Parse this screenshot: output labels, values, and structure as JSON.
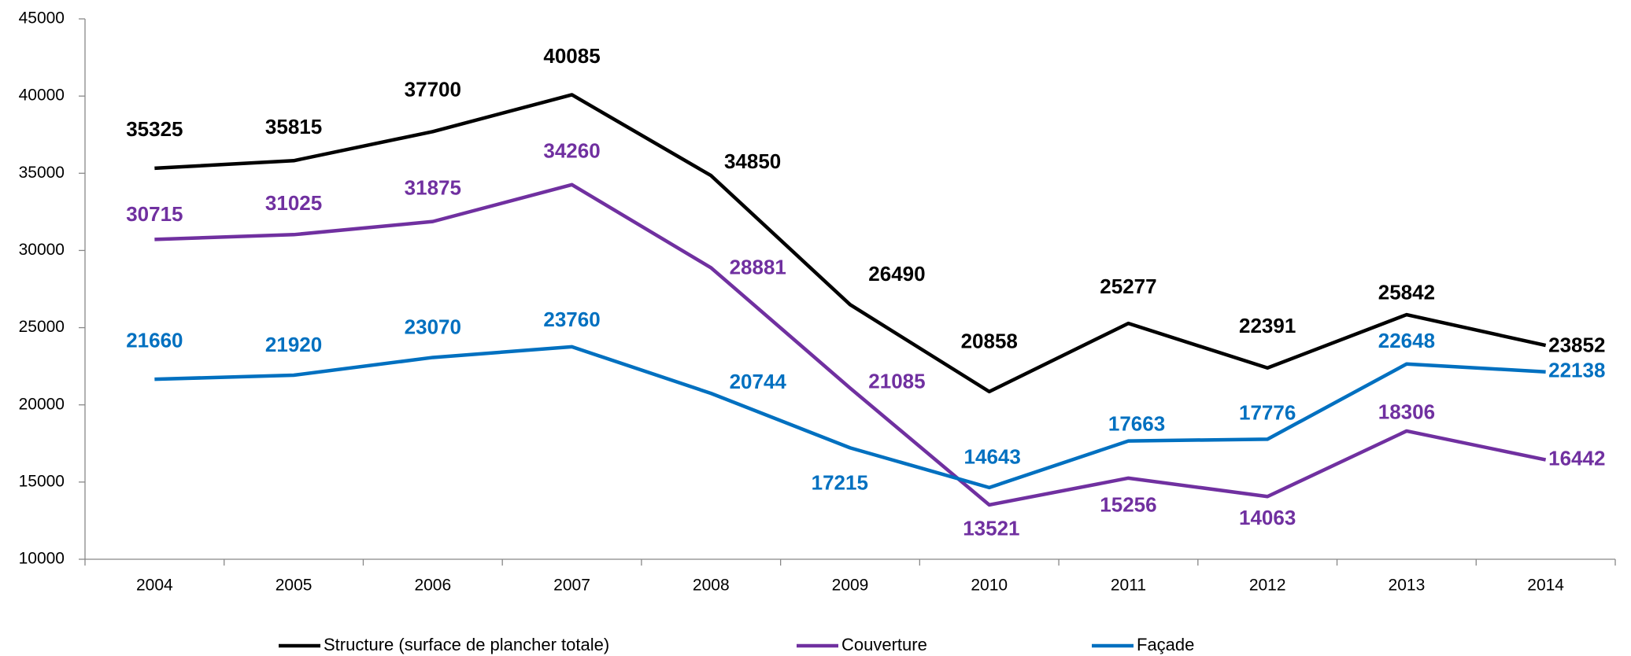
{
  "chart_data": {
    "type": "line",
    "categories": [
      "2004",
      "2005",
      "2006",
      "2007",
      "2008",
      "2009",
      "2010",
      "2011",
      "2012",
      "2013",
      "2014"
    ],
    "series": [
      {
        "name": "Structure (surface de plancher totale)",
        "color": "#000000",
        "values": [
          35325,
          35815,
          37700,
          40085,
          34850,
          26490,
          20858,
          25277,
          22391,
          25842,
          23852
        ]
      },
      {
        "name": "Couverture",
        "color": "#7030a0",
        "values": [
          30715,
          31025,
          31875,
          34260,
          28881,
          21085,
          13521,
          15256,
          14063,
          18306,
          16442
        ]
      },
      {
        "name": "Façade",
        "color": "#0070c0",
        "values": [
          21660,
          21920,
          23070,
          23760,
          20744,
          17215,
          14643,
          17663,
          17776,
          22648,
          22138
        ]
      }
    ],
    "ylim": [
      10000,
      45000
    ],
    "yticks": [
      10000,
      15000,
      20000,
      25000,
      30000,
      35000,
      40000,
      45000
    ],
    "grid": false,
    "legend": "bottom"
  }
}
